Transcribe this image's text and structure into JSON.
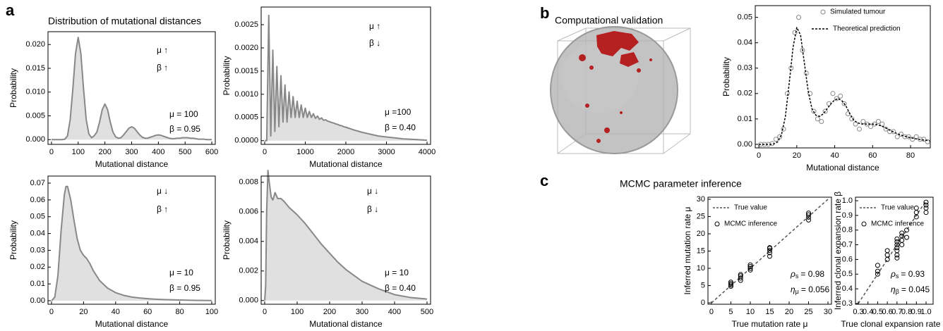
{
  "panels": [
    {
      "label": "a",
      "title": "Distribution of mutational distances"
    },
    {
      "label": "b",
      "title": "Computational validation"
    },
    {
      "label": "c",
      "title": "MCMC parameter inference"
    }
  ],
  "chart_data": [
    {
      "type": "area",
      "xlabel": "Mutational distance",
      "ylabel": "Probability",
      "annotations": [
        "μ ↑",
        "β ↑",
        "μ = 100",
        "β = 0.95"
      ],
      "xlim": [
        -13,
        613
      ],
      "ylim": [
        -0.001,
        0.0227
      ],
      "xticks": [
        0,
        100,
        200,
        300,
        400,
        500,
        600
      ],
      "yticks": [
        {
          "value": 0,
          "label": "0.000"
        },
        0.005,
        {
          "value": 0.01,
          "label": "0.010"
        },
        0.015,
        {
          "value": 0.02,
          "label": "0.020"
        }
      ],
      "series": [
        {
          "color": "#888888",
          "fill": "#e0e0e0",
          "x": [
            0,
            10,
            20,
            30,
            40,
            50,
            60,
            70,
            80,
            90,
            100,
            110,
            120,
            130,
            140,
            150,
            160,
            170,
            180,
            190,
            200,
            210,
            220,
            230,
            240,
            250,
            260,
            270,
            280,
            290,
            300,
            310,
            320,
            330,
            340,
            350,
            360,
            370,
            380,
            390,
            400,
            410,
            420,
            430,
            440,
            450,
            460,
            470,
            480,
            490,
            500,
            510,
            520,
            530,
            540,
            550,
            560,
            570,
            580,
            590,
            600
          ],
          "values": [
            0,
            0,
            0,
            0,
            0,
            0.0001,
            0.0008,
            0.0042,
            0.0107,
            0.0181,
            0.0215,
            0.0181,
            0.0107,
            0.0042,
            0.0012,
            0.0004,
            0.0008,
            0.0016,
            0.0037,
            0.0063,
            0.0075,
            0.0063,
            0.0037,
            0.0016,
            0.0006,
            0.0003,
            0.0004,
            0.001,
            0.0017,
            0.0024,
            0.0027,
            0.0024,
            0.0017,
            0.001,
            0.0005,
            0.0003,
            0.0003,
            0.0005,
            0.0007,
            0.0009,
            0.001,
            0.0009,
            0.0007,
            0.0005,
            0.0003,
            0.0002,
            0.0002,
            0.0003,
            0.0003,
            0.0004,
            0.0004,
            0.0004,
            0.0003,
            0.0003,
            0.0002,
            0.0001,
            0.0001,
            0.0001,
            0,
            0,
            0
          ]
        }
      ]
    },
    {
      "type": "area",
      "xlabel": "Mutational distance",
      "ylabel": "Probability",
      "annotations": [
        "μ ↑",
        "β ↓",
        "μ =100",
        "β = 0.40"
      ],
      "xlim": [
        -87,
        4087
      ],
      "ylim": [
        -8e-05,
        0.00288
      ],
      "xticks": [
        0,
        1000,
        2000,
        3000,
        4000
      ],
      "yticks": [
        {
          "value": 0,
          "label": "0.0000"
        },
        0.0005,
        {
          "value": 0.001,
          "label": "0.0010"
        },
        0.0015,
        {
          "value": 0.002,
          "label": "0.0020"
        },
        0.0025
      ],
      "series": [
        {
          "color": "#888888",
          "fill": "#e0e0e0",
          "x": [
            0,
            50,
            100,
            150,
            200,
            250,
            300,
            350,
            400,
            450,
            500,
            550,
            600,
            650,
            700,
            750,
            800,
            850,
            900,
            950,
            1000,
            1050,
            1100,
            1150,
            1200,
            1250,
            1300,
            1350,
            1400,
            1450,
            1500,
            1550,
            1600,
            1650,
            1700,
            1750,
            1800,
            1850,
            1900,
            1950,
            2000,
            2200,
            2400,
            2600,
            2800,
            3000,
            3200,
            3400,
            3600,
            3800,
            4000
          ],
          "values": [
            0,
            0,
            0.0027,
            0.0001,
            0.00195,
            0.0002,
            0.0016,
            0.0003,
            0.0014,
            0.0004,
            0.0012,
            0.0004,
            0.00105,
            0.0005,
            0.00095,
            0.0005,
            0.00085,
            0.0005,
            0.00077,
            0.0005,
            0.0007,
            0.0005,
            0.00063,
            0.0005,
            0.00058,
            0.00048,
            0.00053,
            0.00046,
            0.00049,
            0.00044,
            0.00045,
            0.00042,
            0.00041,
            0.00039,
            0.00038,
            0.00036,
            0.00035,
            0.00033,
            0.00032,
            0.0003,
            0.00029,
            0.00023,
            0.00018,
            0.00014,
            0.0001,
            8e-05,
            6e-05,
            4e-05,
            3e-05,
            2e-05,
            1e-05
          ]
        }
      ]
    },
    {
      "type": "area",
      "xlabel": "Mutational distance",
      "ylabel": "Probability",
      "annotations": [
        "μ ↓",
        "β ↑",
        "μ = 10",
        "β = 0.95"
      ],
      "xlim": [
        -2.2,
        102.2
      ],
      "ylim": [
        -0.0021,
        0.0742
      ],
      "xticks": [
        0,
        20,
        40,
        60,
        80,
        100
      ],
      "yticks": [
        {
          "value": 0,
          "label": "0.00"
        },
        0.01,
        0.02,
        0.03,
        0.04,
        0.05,
        0.06,
        0.07
      ],
      "series": [
        {
          "color": "#888888",
          "fill": "#e0e0e0",
          "x": [
            0,
            2,
            4,
            6,
            8,
            9,
            10,
            12,
            14,
            16,
            18,
            20,
            22,
            24,
            26,
            28,
            30,
            35,
            40,
            45,
            50,
            55,
            60,
            65,
            70,
            80,
            90,
            100
          ],
          "values": [
            0,
            0.002,
            0.015,
            0.042,
            0.063,
            0.068,
            0.068,
            0.06,
            0.048,
            0.037,
            0.03,
            0.027,
            0.025,
            0.022,
            0.018,
            0.015,
            0.012,
            0.0075,
            0.0048,
            0.0032,
            0.0022,
            0.0016,
            0.0012,
            0.0009,
            0.0007,
            0.0004,
            0.0002,
            0.0001
          ]
        }
      ]
    },
    {
      "type": "area",
      "xlabel": "Mutational distance",
      "ylabel": "Probability",
      "annotations": [
        "μ ↓",
        "β ↓",
        "μ = 10",
        "β = 0.40"
      ],
      "xlim": [
        -10.9,
        510.9
      ],
      "ylim": [
        -0.00025,
        0.00842
      ],
      "xticks": [
        0,
        100,
        200,
        300,
        400,
        500
      ],
      "yticks": [
        {
          "value": 0,
          "label": "0.000"
        },
        0.002,
        0.004,
        0.006,
        0.008
      ],
      "series": [
        {
          "color": "#888888",
          "fill": "#e0e0e0",
          "x": [
            0,
            3,
            6,
            10,
            14,
            20,
            25,
            32,
            40,
            50,
            60,
            75,
            100,
            125,
            150,
            175,
            200,
            225,
            250,
            275,
            300,
            350,
            400,
            450,
            500
          ],
          "values": [
            0,
            0.001,
            0.006,
            0.0088,
            0.008,
            0.007,
            0.0068,
            0.0073,
            0.0069,
            0.0069,
            0.0067,
            0.0063,
            0.0058,
            0.0052,
            0.0045,
            0.0038,
            0.0032,
            0.0026,
            0.0021,
            0.0017,
            0.0013,
            0.0008,
            0.0004,
            0.0002,
            0.0001
          ]
        }
      ]
    },
    {
      "type": "line",
      "xlabel": "Mutational distance",
      "ylabel": "Probability",
      "xlim": [
        -1.9,
        90.4
      ],
      "ylim": [
        -0.0014,
        0.0546
      ],
      "xticks": [
        0,
        20,
        40,
        60,
        80
      ],
      "yticks": [
        {
          "value": 0,
          "label": "0.00"
        },
        0.01,
        0.02,
        0.03,
        0.04,
        0.05
      ],
      "series": [
        {
          "name": "Simulated tumour",
          "mode": "markers",
          "color": "#888888",
          "x": [
            1,
            3,
            5,
            7,
            9,
            11,
            13,
            15,
            17,
            19,
            21,
            23,
            25,
            27,
            29,
            31,
            33,
            35,
            37,
            39,
            41,
            43,
            45,
            47,
            49,
            51,
            53,
            55,
            57,
            59,
            61,
            63,
            65,
            67,
            69,
            71,
            73,
            75,
            77,
            79,
            81,
            83,
            85,
            87,
            89
          ],
          "values": [
            0,
            0,
            0,
            0.0003,
            0.002,
            0.003,
            0.006,
            0.02,
            0.03,
            0.044,
            0.05,
            0.037,
            0.028,
            0.02,
            0.013,
            0.01,
            0.009,
            0.013,
            0.016,
            0.02,
            0.018,
            0.019,
            0.016,
            0.012,
            0.01,
            0.008,
            0.006,
            0.009,
            0.008,
            0.007,
            0.008,
            0.009,
            0.008,
            0.006,
            0.005,
            0.005,
            0.003,
            0.004,
            0.003,
            0.003,
            0.002,
            0.003,
            0.002,
            0.002,
            0.001
          ]
        },
        {
          "name": "Theoretical prediction",
          "mode": "dashed",
          "color": "#000000",
          "x": [
            0,
            2,
            4,
            6,
            8,
            10,
            12,
            14,
            16,
            18,
            20,
            22,
            24,
            26,
            28,
            30,
            32,
            34,
            36,
            38,
            40,
            42,
            44,
            46,
            48,
            50,
            52,
            54,
            56,
            58,
            60,
            62,
            64,
            66,
            68,
            70,
            72,
            74,
            76,
            78,
            80,
            82,
            84,
            86,
            88,
            90
          ],
          "values": [
            0,
            0,
            0,
            0,
            0.0002,
            0.001,
            0.004,
            0.011,
            0.024,
            0.038,
            0.046,
            0.043,
            0.032,
            0.021,
            0.014,
            0.0115,
            0.011,
            0.012,
            0.014,
            0.016,
            0.0175,
            0.018,
            0.017,
            0.015,
            0.012,
            0.0095,
            0.0085,
            0.008,
            0.008,
            0.008,
            0.008,
            0.0078,
            0.0074,
            0.0068,
            0.006,
            0.0052,
            0.0045,
            0.0039,
            0.0034,
            0.003,
            0.0026,
            0.0023,
            0.002,
            0.0018,
            0.0016,
            0.0014
          ]
        }
      ]
    },
    {
      "type": "scatter",
      "xlabel": "True mutation rate μ",
      "ylabel": "Inferred mutation rate μ",
      "xlim": [
        -0.9,
        30.9
      ],
      "ylim": [
        -0.4,
        30.6
      ],
      "xticks": [
        0,
        5,
        10,
        15,
        20,
        25,
        30
      ],
      "yticks": [
        0,
        5,
        10,
        15,
        20,
        25,
        30
      ],
      "stats": [
        {
          "symbol": "ρ",
          "sub": "s",
          "text": "= 0.98"
        },
        {
          "symbol": "η",
          "sub": "μ",
          "text": "= 0.056"
        }
      ],
      "series": [
        {
          "name": "True value",
          "mode": "dashed",
          "color": "#555555",
          "x": [
            0,
            30
          ],
          "values": [
            0,
            30
          ]
        },
        {
          "name": "MCMC inference",
          "mode": "markers",
          "color": "#000000",
          "x": [
            5,
            5,
            5,
            5,
            7.5,
            7.5,
            7.5,
            7.5,
            10,
            10,
            10,
            10,
            15,
            15,
            15,
            15,
            15,
            25,
            25,
            25,
            25
          ],
          "values": [
            4.8,
            5.2,
            5.6,
            6,
            6.5,
            7.2,
            7.8,
            8.2,
            9.5,
            10,
            10.5,
            11,
            13.5,
            14.5,
            15.2,
            15.8,
            16,
            24,
            24.8,
            25.5,
            26
          ]
        }
      ]
    },
    {
      "type": "scatter",
      "xlabel": "True clonal expansion rate β",
      "ylabel": "Inferred clonal expansion rate β",
      "xlim": [
        0.271,
        1.073
      ],
      "ylim": [
        0.295,
        1.024
      ],
      "xticks": [
        0.3,
        0.4,
        0.5,
        0.6,
        0.7,
        0.8,
        0.9,
        {
          "value": 1,
          "label": "1.0"
        }
      ],
      "yticks": [
        0.3,
        0.4,
        0.5,
        0.6,
        0.7,
        0.8,
        0.9,
        {
          "value": 1,
          "label": "1.0"
        }
      ],
      "stats": [
        {
          "symbol": "ρ",
          "sub": "s",
          "text": "= 0.93"
        },
        {
          "symbol": "η",
          "sub": "β",
          "text": "= 0.045"
        }
      ],
      "series": [
        {
          "name": "True value",
          "mode": "dashed",
          "color": "#555555",
          "x": [
            0.3,
            1
          ],
          "values": [
            0.3,
            1
          ]
        },
        {
          "name": "MCMC inference",
          "mode": "markers",
          "color": "#000000",
          "x": [
            0.5,
            0.5,
            0.5,
            0.6,
            0.6,
            0.6,
            0.7,
            0.7,
            0.7,
            0.7,
            0.7,
            0.7,
            0.7,
            0.75,
            0.75,
            0.75,
            0.75,
            0.8,
            0.8,
            0.9,
            0.9,
            0.9,
            1,
            1,
            1,
            1
          ],
          "values": [
            0.5,
            0.52,
            0.56,
            0.6,
            0.63,
            0.66,
            0.61,
            0.63,
            0.66,
            0.68,
            0.7,
            0.72,
            0.74,
            0.7,
            0.73,
            0.76,
            0.78,
            0.75,
            0.8,
            0.89,
            0.92,
            0.95,
            0.92,
            0.95,
            0.97,
            0.99
          ]
        }
      ]
    }
  ]
}
